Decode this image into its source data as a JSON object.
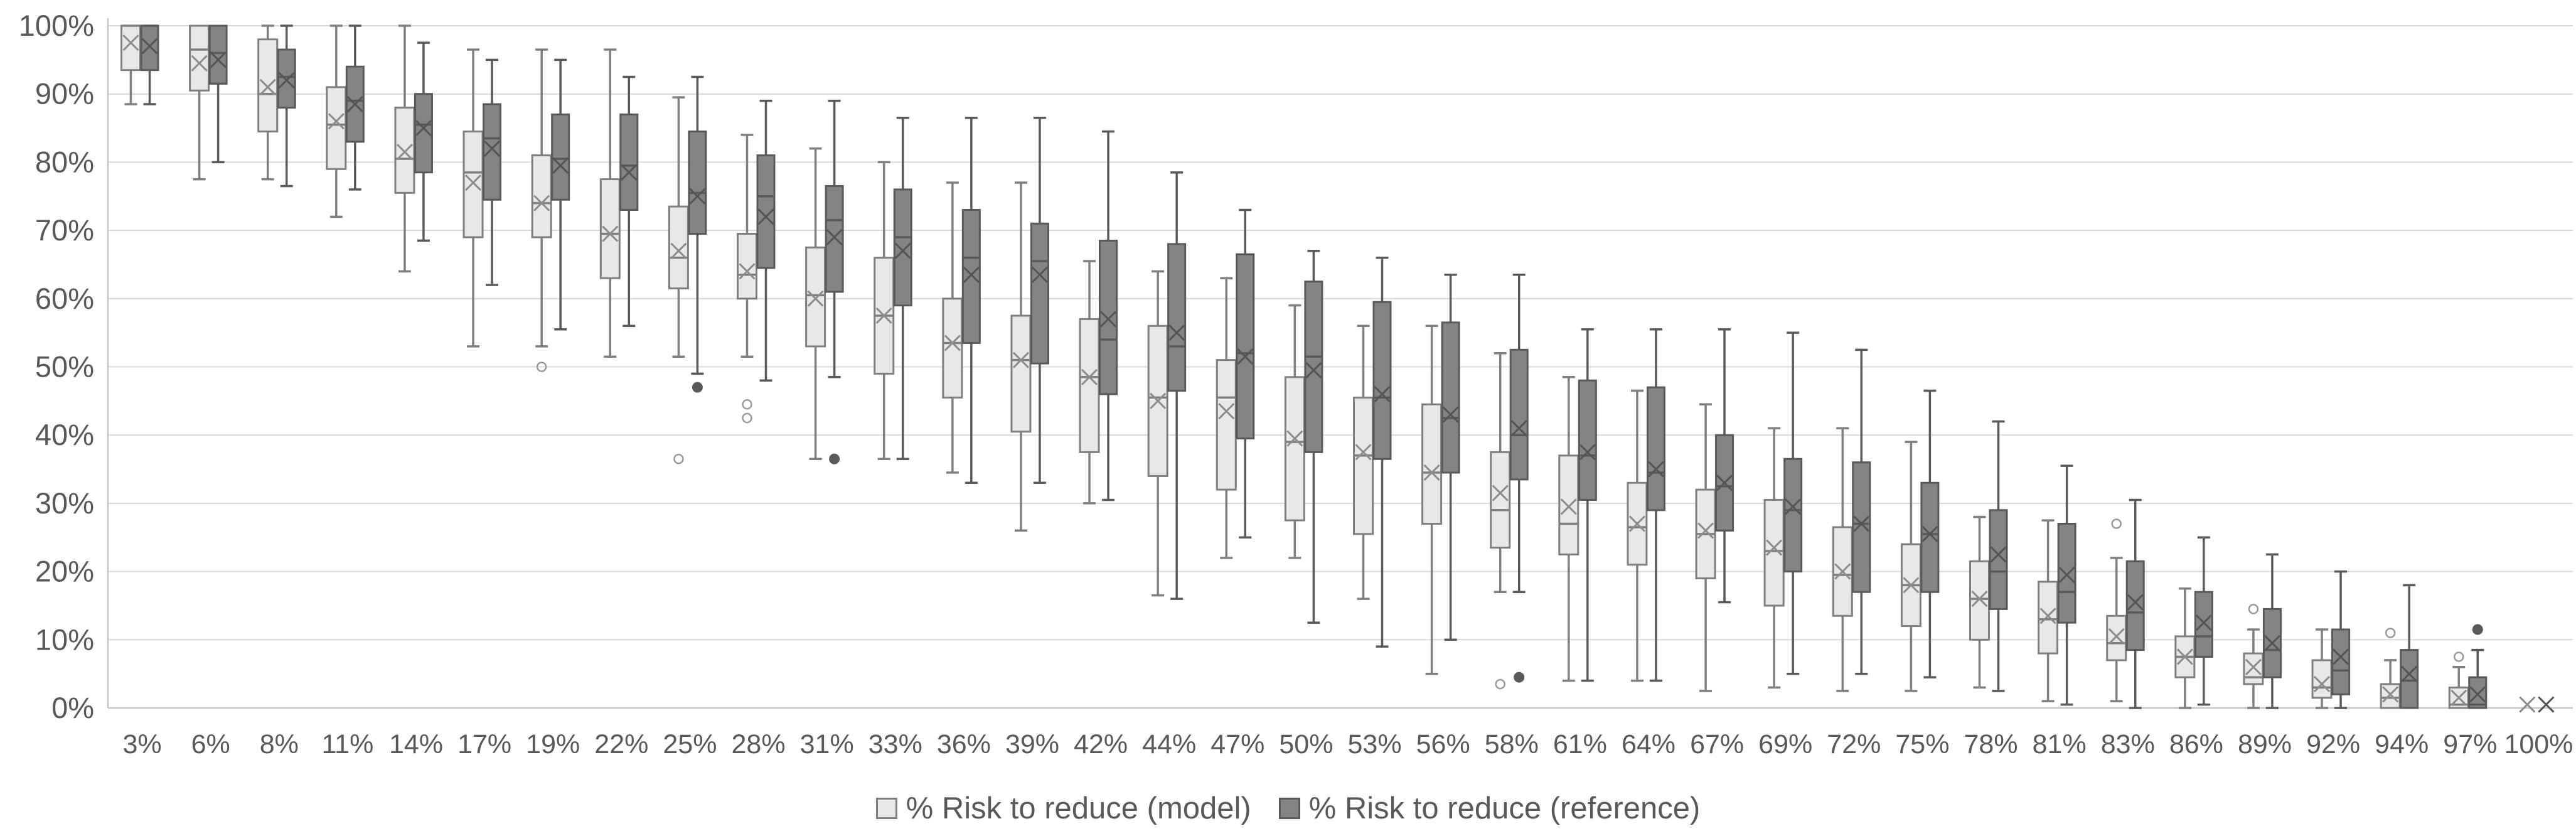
{
  "chart_data": {
    "type": "boxplot",
    "title": "",
    "xlabel": "",
    "ylabel": "",
    "ylim": [
      0,
      100
    ],
    "grid": true,
    "legend_position": "bottom",
    "y_tick_labels": [
      "0%",
      "10%",
      "20%",
      "30%",
      "40%",
      "50%",
      "60%",
      "70%",
      "80%",
      "90%",
      "100%"
    ],
    "categories": [
      "3%",
      "6%",
      "8%",
      "11%",
      "14%",
      "17%",
      "19%",
      "22%",
      "25%",
      "28%",
      "31%",
      "33%",
      "36%",
      "39%",
      "42%",
      "44%",
      "47%",
      "50%",
      "53%",
      "56%",
      "58%",
      "61%",
      "64%",
      "67%",
      "69%",
      "72%",
      "75%",
      "78%",
      "81%",
      "83%",
      "86%",
      "89%",
      "92%",
      "94%",
      "97%",
      "100%"
    ],
    "box_stats_order": [
      "min",
      "q1",
      "median",
      "q3",
      "max",
      "mean"
    ],
    "series": [
      {
        "name": "% Risk to reduce (model)",
        "fill": "#e8e8e8",
        "stroke": "#7f7f7f",
        "mean_marker_color": "#8c8c8c",
        "outlier_style": "open-circle",
        "boxes": [
          [
            88.5,
            93.5,
            100,
            100,
            100,
            97.5
          ],
          [
            77.5,
            90.5,
            96.5,
            100,
            100,
            94.5
          ],
          [
            77.5,
            84.5,
            90,
            98,
            100,
            91
          ],
          [
            72,
            79,
            85.5,
            91,
            100,
            86
          ],
          [
            64,
            75.5,
            80.5,
            88,
            100,
            81.5
          ],
          [
            53,
            69,
            78.5,
            84.5,
            96.5,
            77
          ],
          [
            53,
            69,
            74,
            81,
            96.5,
            74
          ],
          [
            51.5,
            63,
            69.5,
            77.5,
            96.5,
            69.5
          ],
          [
            51.5,
            61.5,
            66,
            73.5,
            89.5,
            67
          ],
          [
            51.5,
            60,
            63.5,
            69.5,
            84,
            64
          ],
          [
            36.5,
            53,
            60.5,
            67.5,
            82,
            60
          ],
          [
            36.5,
            49,
            57.5,
            66,
            80,
            57.5
          ],
          [
            34.5,
            45.5,
            53.5,
            60,
            77,
            53.5
          ],
          [
            26,
            40.5,
            51,
            57.5,
            77,
            51
          ],
          [
            30,
            37.5,
            48.5,
            57,
            65.5,
            48.5
          ],
          [
            16.5,
            34,
            45.5,
            56,
            64,
            45
          ],
          [
            22,
            32,
            45.5,
            51,
            63,
            43.5
          ],
          [
            22,
            27.5,
            39,
            48.5,
            59,
            39.5
          ],
          [
            16,
            25.5,
            37,
            45.5,
            56,
            37.5
          ],
          [
            5,
            27,
            34.5,
            44.5,
            56,
            34.5
          ],
          [
            17,
            23.5,
            29,
            37.5,
            52,
            31.5
          ],
          [
            4,
            22.5,
            27,
            37,
            48.5,
            29.5
          ],
          [
            4,
            21,
            26.5,
            33,
            46.5,
            27
          ],
          [
            2.5,
            19,
            25.5,
            32,
            44.5,
            26
          ],
          [
            3,
            15,
            23,
            30.5,
            41,
            23.5
          ],
          [
            2.5,
            13.5,
            19.5,
            26.5,
            41,
            20
          ],
          [
            2.5,
            12,
            18,
            24,
            39,
            18
          ],
          [
            3,
            10,
            16,
            21.5,
            28,
            16
          ],
          [
            1,
            8,
            13,
            18.5,
            27.5,
            13.5
          ],
          [
            1,
            7,
            9.5,
            13.5,
            22,
            10.5
          ],
          [
            0,
            4.5,
            7.5,
            10.5,
            17.5,
            7.5
          ],
          [
            0,
            3.5,
            4.5,
            8,
            11.5,
            6
          ],
          [
            0,
            1.5,
            3,
            7,
            11.5,
            3.5
          ],
          [
            0,
            0,
            1.5,
            3.5,
            7,
            2
          ],
          [
            0,
            0,
            0.5,
            3,
            6,
            1.5
          ],
          [
            0,
            0,
            0,
            0,
            0,
            0.5
          ]
        ],
        "outliers": [
          [
            6,
            50
          ],
          [
            8,
            36.5
          ],
          [
            9,
            44.5
          ],
          [
            9,
            42.5
          ],
          [
            20,
            3.5
          ],
          [
            29,
            27
          ],
          [
            31,
            14.5
          ],
          [
            33,
            11
          ],
          [
            34,
            7.5
          ]
        ]
      },
      {
        "name": "% Risk to reduce (reference)",
        "fill": "#848484",
        "stroke": "#595959",
        "mean_marker_color": "#545454",
        "outlier_style": "filled-circle",
        "boxes": [
          [
            88.5,
            93.5,
            100,
            100,
            100,
            97
          ],
          [
            80,
            91.5,
            96,
            100,
            100,
            95
          ],
          [
            76.5,
            88,
            92.5,
            96.5,
            100,
            92
          ],
          [
            76,
            83,
            89,
            94,
            100,
            88.5
          ],
          [
            68.5,
            78.5,
            85.5,
            90,
            97.5,
            85
          ],
          [
            62,
            74.5,
            83.5,
            88.5,
            95,
            82
          ],
          [
            55.5,
            74.5,
            80.5,
            87,
            95,
            79.5
          ],
          [
            56,
            73,
            79.5,
            87,
            92.5,
            78.5
          ],
          [
            49,
            69.5,
            75.5,
            84.5,
            92.5,
            75
          ],
          [
            48,
            64.5,
            75,
            81,
            89,
            72
          ],
          [
            48.5,
            61,
            71.5,
            76.5,
            89,
            69
          ],
          [
            36.5,
            59,
            69,
            76,
            86.5,
            67
          ],
          [
            33,
            53.5,
            66,
            73,
            86.5,
            63.5
          ],
          [
            33,
            50.5,
            65.5,
            71,
            86.5,
            63.5
          ],
          [
            30.5,
            46,
            54,
            68.5,
            84.5,
            57
          ],
          [
            16,
            46.5,
            53,
            68,
            78.5,
            55
          ],
          [
            25,
            39.5,
            52,
            66.5,
            73,
            51.5
          ],
          [
            12.5,
            37.5,
            51.5,
            62.5,
            67,
            49.5
          ],
          [
            9,
            36.5,
            45.5,
            59.5,
            66,
            46
          ],
          [
            10,
            34.5,
            42.5,
            56.5,
            63.5,
            43
          ],
          [
            17,
            33.5,
            40,
            52.5,
            63.5,
            41
          ],
          [
            4,
            30.5,
            37,
            48,
            55.5,
            37.5
          ],
          [
            4,
            29,
            34.5,
            47,
            55.5,
            35
          ],
          [
            15.5,
            26,
            32.5,
            40,
            55.5,
            33
          ],
          [
            5,
            20,
            29,
            36.5,
            55,
            29.5
          ],
          [
            5,
            17,
            27,
            36,
            52.5,
            27
          ],
          [
            4.5,
            17,
            25.5,
            33,
            46.5,
            25.5
          ],
          [
            2.5,
            14.5,
            20,
            29,
            42,
            22.5
          ],
          [
            0.5,
            12.5,
            17,
            27,
            35.5,
            19.5
          ],
          [
            0,
            8.5,
            14,
            21.5,
            30.5,
            15.5
          ],
          [
            0.5,
            7.5,
            10.5,
            17,
            25,
            12.5
          ],
          [
            0,
            4.5,
            8.5,
            14.5,
            22.5,
            9.5
          ],
          [
            0,
            2,
            5.5,
            11.5,
            20,
            7.5
          ],
          [
            0,
            0,
            4,
            8.5,
            18,
            5
          ],
          [
            0,
            0,
            0.5,
            4.5,
            8.5,
            2
          ],
          [
            0,
            0,
            0,
            0,
            0,
            0.5
          ]
        ],
        "outliers": [
          [
            8,
            47
          ],
          [
            10,
            36.5
          ],
          [
            20,
            4.5
          ],
          [
            34,
            11.5
          ]
        ]
      }
    ]
  },
  "colors": {
    "background": "#ffffff",
    "gridline": "#d9d9d9",
    "axis_line": "#c6c6c6",
    "text": "#595959"
  },
  "legend": {
    "items": [
      {
        "label": "% Risk to reduce (model)"
      },
      {
        "label": "% Risk to reduce (reference)"
      }
    ]
  }
}
